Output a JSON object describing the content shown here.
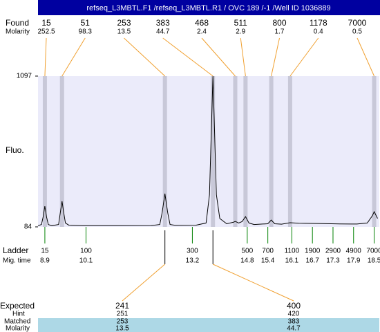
{
  "header": "refseq_L3MBTL.F1 /refseq_L3MBTL.R1 / OVC 189 /-1 /Well ID 1036889",
  "chart_data": {
    "type": "electropherogram",
    "y_label": "Fluo.",
    "ylim": [
      84,
      1097
    ],
    "yticks": [
      84,
      1097
    ],
    "xlim": [
      8.7,
      18.65
    ],
    "trace": {
      "color": "#000000",
      "x": [
        8.7,
        8.8,
        8.85,
        8.9,
        8.95,
        9.0,
        9.1,
        9.3,
        9.35,
        9.4,
        9.45,
        9.5,
        9.6,
        10.0,
        11.0,
        12.0,
        12.25,
        12.32,
        12.4,
        12.48,
        12.55,
        12.7,
        13.3,
        13.6,
        13.7,
        13.75,
        13.8,
        13.85,
        13.9,
        14.0,
        14.2,
        14.4,
        14.45,
        14.55,
        14.65,
        14.75,
        14.85,
        15.0,
        15.4,
        15.5,
        15.6,
        15.8,
        16.05,
        16.3,
        17.0,
        17.5,
        18.0,
        18.3,
        18.45,
        18.5,
        18.6
      ],
      "values": [
        92,
        100,
        150,
        223,
        150,
        100,
        92,
        100,
        180,
        256,
        180,
        110,
        95,
        92,
        92,
        93,
        100,
        180,
        307,
        180,
        100,
        94,
        95,
        110,
        300,
        700,
        1097,
        700,
        300,
        140,
        105,
        115,
        121,
        110,
        120,
        153,
        110,
        100,
        105,
        130,
        105,
        102,
        112,
        108,
        106,
        104,
        103,
        110,
        160,
        186,
        140
      ]
    },
    "found": {
      "label": "Found",
      "molarity_label": "Molarity",
      "color": "#f0a030",
      "band_color": "#c8c8d8",
      "sizes": [
        15,
        51,
        253,
        383,
        468,
        511,
        800,
        1178,
        7000
      ],
      "molarities": [
        252.5,
        98.3,
        13.5,
        44.7,
        2.4,
        2.9,
        1.7,
        0.4,
        0.5
      ],
      "mig_times": [
        8.9,
        9.4,
        12.4,
        13.8,
        14.45,
        14.75,
        15.5,
        16.05,
        18.5
      ]
    },
    "ladder": {
      "label": "Ladder",
      "time_label": "Mig. time",
      "color": "#008000",
      "sizes": [
        15,
        100,
        300,
        500,
        700,
        1100,
        1900,
        2900,
        4900,
        7000
      ],
      "mig_times": [
        8.9,
        10.1,
        13.2,
        14.8,
        15.4,
        16.1,
        16.7,
        17.3,
        17.9,
        18.5
      ]
    },
    "expected": {
      "label": "Expected",
      "hint_label": "Hint",
      "matched_label": "Matched",
      "molarity_label": "Molarity",
      "sizes": [
        241,
        400
      ],
      "hints": [
        251,
        420
      ],
      "matched": [
        253,
        383
      ],
      "molarities": [
        13.5,
        44.7
      ]
    }
  }
}
